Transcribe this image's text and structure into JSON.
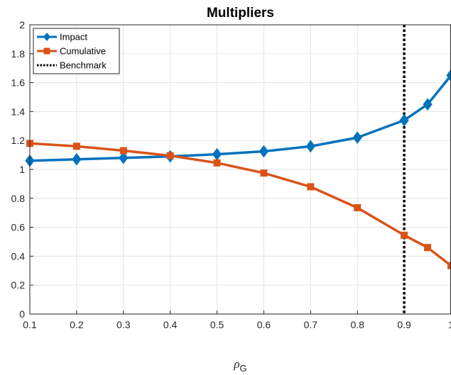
{
  "chart_data": {
    "type": "line",
    "title": "Multipliers",
    "xlabel": "ρ",
    "xlabel_sub": "G",
    "ylabel": "",
    "xlim": [
      0.1,
      1.0
    ],
    "ylim": [
      0,
      2
    ],
    "x_ticks": [
      0.1,
      0.2,
      0.3,
      0.4,
      0.5,
      0.6,
      0.7,
      0.8,
      0.9,
      1.0
    ],
    "x_tick_labels": [
      "0.1",
      "0.2",
      "0.3",
      "0.4",
      "0.5",
      "0.6",
      "0.7",
      "0.8",
      "0.9",
      "1"
    ],
    "y_ticks": [
      0,
      0.2,
      0.4,
      0.6,
      0.8,
      1.0,
      1.2,
      1.4,
      1.6,
      1.8,
      2.0
    ],
    "y_tick_labels": [
      "0",
      "0.2",
      "0.4",
      "0.6",
      "0.8",
      "1",
      "1.2",
      "1.4",
      "1.6",
      "1.8",
      "2"
    ],
    "grid": true,
    "legend_position": "top-left",
    "x": [
      0.1,
      0.2,
      0.3,
      0.4,
      0.5,
      0.6,
      0.7,
      0.8,
      0.9,
      0.95,
      1.0
    ],
    "series": [
      {
        "name": "Impact",
        "color": "#0072BD",
        "marker": "diamond",
        "values": [
          1.06,
          1.07,
          1.08,
          1.09,
          1.105,
          1.125,
          1.16,
          1.22,
          1.34,
          1.45,
          1.65
        ]
      },
      {
        "name": "Cumulative",
        "color": "#D95319",
        "marker": "square",
        "values": [
          1.18,
          1.16,
          1.13,
          1.095,
          1.045,
          0.975,
          0.88,
          0.735,
          0.545,
          0.46,
          0.335
        ]
      }
    ],
    "reference_lines": [
      {
        "name": "Benchmark",
        "orientation": "vertical",
        "x": 0.9,
        "color": "#000000",
        "style": "dotted"
      }
    ]
  }
}
